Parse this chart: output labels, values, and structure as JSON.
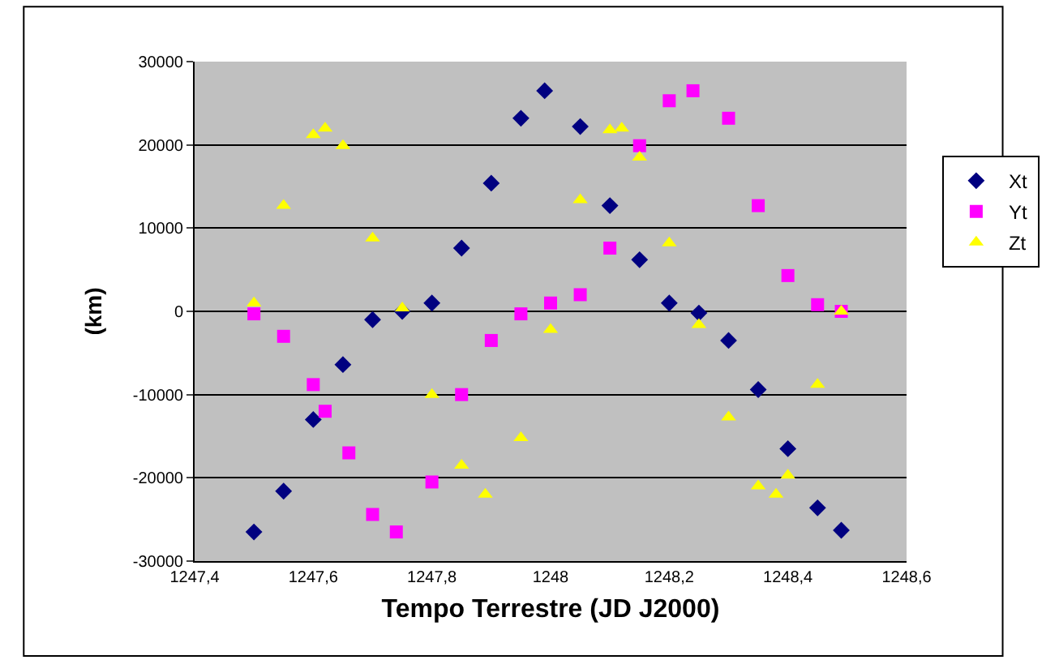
{
  "chart_data": {
    "type": "scatter",
    "xlabel": "Tempo Terrestre (JD J2000)",
    "ylabel": "(km)",
    "xlim": [
      1247.4,
      1248.6
    ],
    "xticks": [
      {
        "value": 1247.4,
        "label": "1247,4"
      },
      {
        "value": 1247.6,
        "label": "1247,6"
      },
      {
        "value": 1247.8,
        "label": "1247,8"
      },
      {
        "value": 1248,
        "label": "1248"
      },
      {
        "value": 1248.2,
        "label": "1248,2"
      },
      {
        "value": 1248.4,
        "label": "1248,4"
      },
      {
        "value": 1248.6,
        "label": "1248,6"
      }
    ],
    "ylim": [
      -30000,
      30000
    ],
    "yticks": [
      -30000,
      -20000,
      -10000,
      0,
      10000,
      20000,
      30000
    ],
    "grid": "y",
    "legend": "right",
    "series": [
      {
        "name": "Xt",
        "color": "#000080",
        "marker": "diamond",
        "x": [
          1247.5,
          1247.55,
          1247.6,
          1247.65,
          1247.7,
          1247.75,
          1247.8,
          1247.85,
          1247.9,
          1247.95,
          1247.99,
          1248.05,
          1248.1,
          1248.15,
          1248.2,
          1248.25,
          1248.3,
          1248.35,
          1248.4,
          1248.45,
          1248.49
        ],
        "values": [
          -26500,
          -21600,
          -13000,
          -6400,
          -1000,
          0,
          1000,
          7600,
          15400,
          23200,
          26500,
          22200,
          12700,
          6200,
          1000,
          -200,
          -3500,
          -9400,
          -16500,
          -23600,
          -26300
        ]
      },
      {
        "name": "Yt",
        "color": "#ff00ff",
        "marker": "square",
        "x": [
          1247.5,
          1247.55,
          1247.6,
          1247.62,
          1247.66,
          1247.7,
          1247.74,
          1247.8,
          1247.85,
          1247.9,
          1247.95,
          1248,
          1248.05,
          1248.1,
          1248.15,
          1248.2,
          1248.24,
          1248.3,
          1248.35,
          1248.4,
          1248.45,
          1248.49
        ],
        "values": [
          -300,
          -3000,
          -8800,
          -12000,
          -17000,
          -24400,
          -26500,
          -20500,
          -10000,
          -3500,
          -300,
          1000,
          2000,
          7600,
          19900,
          25300,
          26500,
          23200,
          12700,
          4300,
          800,
          0
        ]
      },
      {
        "name": "Zt",
        "color": "#ffff00",
        "marker": "triangle",
        "x": [
          1247.5,
          1247.55,
          1247.6,
          1247.62,
          1247.65,
          1247.7,
          1247.75,
          1247.8,
          1247.85,
          1247.89,
          1247.95,
          1248,
          1248.05,
          1248.1,
          1248.12,
          1248.15,
          1248.2,
          1248.25,
          1248.3,
          1248.35,
          1248.38,
          1248.4,
          1248.45,
          1248.49
        ],
        "values": [
          1000,
          12700,
          21200,
          22000,
          19900,
          8800,
          400,
          -10000,
          -18500,
          -22000,
          -15200,
          -2200,
          13400,
          21800,
          22000,
          18500,
          8200,
          -1600,
          -12700,
          -21000,
          -22000,
          -19700,
          -8800,
          0
        ]
      }
    ]
  }
}
